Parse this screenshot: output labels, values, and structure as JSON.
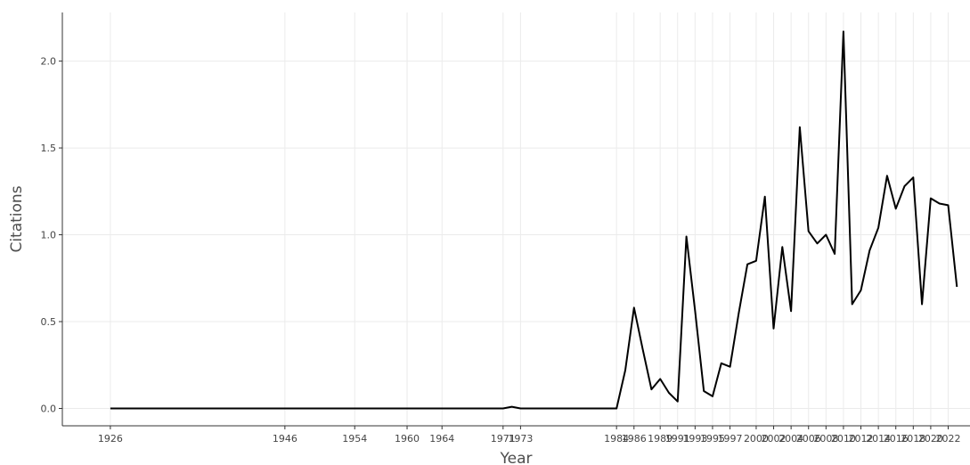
{
  "chart_data": {
    "type": "line",
    "xlabel": "Year",
    "ylabel": "Citations",
    "xlim": [
      1920.5,
      2024.5
    ],
    "ylim": [
      -0.1,
      2.28
    ],
    "x_ticks": [
      1926,
      1946,
      1954,
      1960,
      1964,
      1971,
      1973,
      1984,
      1986,
      1989,
      1991,
      1993,
      1995,
      1997,
      2000,
      2002,
      2004,
      2006,
      2008,
      2010,
      2012,
      2014,
      2016,
      2018,
      2020,
      2022
    ],
    "y_ticks": [
      0.0,
      0.5,
      1.0,
      1.5,
      2.0
    ],
    "y_tick_labels": [
      "0.0",
      "0.5",
      "1.0",
      "1.5",
      "2.0"
    ],
    "grid": true,
    "series": [
      {
        "color": "#000000",
        "x": [
          1926,
          1971,
          1972,
          1973,
          1984,
          1985,
          1986,
          1987,
          1988,
          1989,
          1990,
          1991,
          1992,
          1993,
          1994,
          1995,
          1996,
          1997,
          1998,
          1999,
          2000,
          2001,
          2002,
          2003,
          2004,
          2005,
          2006,
          2007,
          2008,
          2009,
          2010,
          2011,
          2012,
          2013,
          2014,
          2015,
          2016,
          2017,
          2018,
          2019,
          2020,
          2021,
          2022,
          2023
        ],
        "values": [
          0.0,
          0.0,
          0.01,
          0.0,
          0.0,
          0.22,
          0.58,
          0.34,
          0.11,
          0.17,
          0.09,
          0.04,
          0.99,
          0.56,
          0.1,
          0.07,
          0.26,
          0.24,
          0.55,
          0.83,
          0.85,
          1.22,
          0.46,
          0.93,
          0.56,
          1.62,
          1.02,
          0.95,
          1.0,
          0.89,
          2.17,
          0.6,
          0.68,
          0.91,
          1.04,
          1.34,
          1.15,
          1.28,
          1.33,
          0.6,
          1.21,
          1.18,
          1.17,
          0.7
        ]
      }
    ]
  }
}
